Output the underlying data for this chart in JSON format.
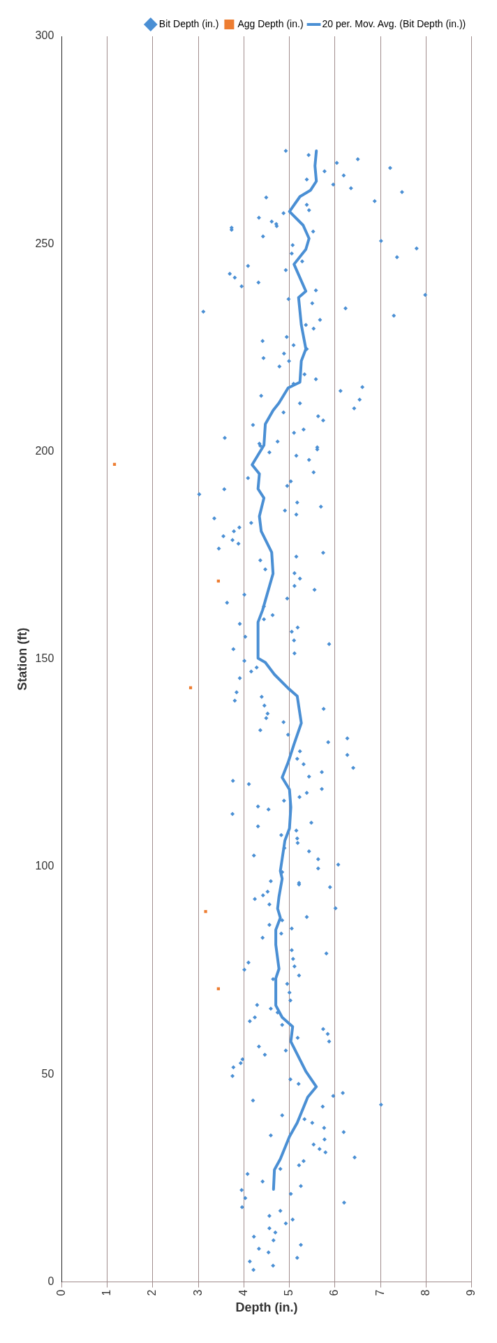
{
  "chart_data": {
    "type": "scatter",
    "xlabel": "Depth (in.)",
    "ylabel": "Station (ft)",
    "xlim": [
      0,
      9
    ],
    "xticks": [
      0,
      1,
      2,
      3,
      4,
      5,
      6,
      7,
      8,
      9
    ],
    "ylim": [
      0,
      300
    ],
    "yticks": [
      0,
      50,
      100,
      150,
      200,
      250,
      300
    ],
    "grid": "x",
    "legend": "top right",
    "series": [
      {
        "name": "Bit Depth (in.)",
        "type": "scatter",
        "marker": "diamond",
        "color": "#4a8fd4",
        "values": [
          272.4,
          271.4,
          269.5,
          270.4,
          268.3,
          267.5,
          265.5,
          266.5,
          264.3,
          263.4,
          262.5,
          260.3,
          261.2,
          259.4,
          258.1,
          257.4,
          256.3,
          255.4,
          254.3,
          253.4,
          253.9,
          254.8,
          253.0,
          251.8,
          250.7,
          248.9,
          249.7,
          247.7,
          246.8,
          245.8,
          244.7,
          243.7,
          242.8,
          241.9,
          239.8,
          240.7,
          238.8,
          237.7,
          236.7,
          235.7,
          234.5,
          233.7,
          232.7,
          231.7,
          230.5,
          229.6,
          227.6,
          226.6,
          225.6,
          224.7,
          223.6,
          222.5,
          221.8,
          220.5,
          218.6,
          217.4,
          216.3,
          215.5,
          214.6,
          212.5,
          213.4,
          211.6,
          210.4,
          209.4,
          208.5,
          207.5,
          206.4,
          205.3,
          204.5,
          203.3,
          202.4,
          201.4,
          200.5,
          201.9,
          199.8,
          201.0,
          199.0,
          198.0,
          195.0,
          193.6,
          192.8,
          191.7,
          190.9,
          189.7,
          187.7,
          186.7,
          185.8,
          184.8,
          183.9,
          182.8,
          181.7,
          180.8,
          179.6,
          178.7,
          177.8,
          176.6,
          175.6,
          174.7,
          173.8,
          171.6,
          170.7,
          169.4,
          167.6,
          166.7,
          164.6,
          165.5,
          163.6,
          162.7,
          160.6,
          159.6,
          158.5,
          157.6,
          156.6,
          155.4,
          154.5,
          153.6,
          152.4,
          151.4,
          149.6,
          147.0,
          148.0,
          145.4,
          142.0,
          140.0,
          140.9,
          138.8,
          136.9,
          135.8,
          138.0,
          134.8,
          132.9,
          131.8,
          130.9,
          130.0,
          126.9,
          127.8,
          126.0,
          124.7,
          123.8,
          122.8,
          121.7,
          120.7,
          119.9,
          117.8,
          118.7,
          116.8,
          115.9,
          114.5,
          113.8,
          112.7,
          110.6,
          109.7,
          107.6,
          108.7,
          106.8,
          105.7,
          103.7,
          102.7,
          104.5,
          101.8,
          100.5,
          99.6,
          98.7,
          96.5,
          95.7,
          95.1,
          96.1,
          94.0,
          93.1,
          92.2,
          90.9,
          90.0,
          87.9,
          87.1,
          86.0,
          85.1,
          83.9,
          82.9,
          79.9,
          79.1,
          77.8,
          76.0,
          76.9,
          75.2,
          73.8,
          72.9,
          71.8,
          69.7,
          67.8,
          66.7,
          65.8,
          64.9,
          63.7,
          62.8,
          61.9,
          60.9,
          59.7,
          57.9,
          58.8,
          56.7,
          55.7,
          54.7,
          53.6,
          52.7,
          51.7,
          49.6,
          48.8,
          47.7,
          44.8,
          45.5,
          43.7,
          42.7,
          42.2,
          40.1,
          39.2,
          38.3,
          37.1,
          35.3,
          36.1,
          34.3,
          33.1,
          32.0,
          31.2,
          30.0,
          28.1,
          29.1,
          27.2,
          26.0,
          24.2,
          23.1,
          22.1,
          20.2,
          21.2,
          19.1,
          18.0,
          17.1,
          15.9,
          15.0,
          14.1,
          12.9,
          11.9,
          10.9,
          10.0,
          8.9,
          8.0,
          7.1,
          5.8,
          4.9,
          2.9,
          3.9
        ],
        "x": [
          4.92,
          5.42,
          6.04,
          6.5,
          7.21,
          5.77,
          5.38,
          6.19,
          5.96,
          6.35,
          7.47,
          6.87,
          4.49,
          5.38,
          5.43,
          4.87,
          4.33,
          4.61,
          4.72,
          3.73,
          3.73,
          4.71,
          5.52,
          4.42,
          7.01,
          7.79,
          5.07,
          5.05,
          7.36,
          5.28,
          4.09,
          4.92,
          3.69,
          3.8,
          3.95,
          4.32,
          5.58,
          7.98,
          4.98,
          5.5,
          6.23,
          3.11,
          7.29,
          5.67,
          5.36,
          5.53,
          4.94,
          4.41,
          5.09,
          5.38,
          4.88,
          4.43,
          4.99,
          4.78,
          5.33,
          5.58,
          5.09,
          6.6,
          6.12,
          6.54,
          4.38,
          5.23,
          6.42,
          4.87,
          5.63,
          5.74,
          4.2,
          5.31,
          5.1,
          3.58,
          4.74,
          4.36,
          5.61,
          4.34,
          4.56,
          5.61,
          5.15,
          5.43,
          5.53,
          4.09,
          5.03,
          4.95,
          3.57,
          3.02,
          5.17,
          5.69,
          4.9,
          5.15,
          3.35,
          4.16,
          3.9,
          3.78,
          3.55,
          3.75,
          3.88,
          3.45,
          5.74,
          5.15,
          4.36,
          4.47,
          5.11,
          5.23,
          5.11,
          5.55,
          4.95,
          4.01,
          3.63,
          4.44,
          4.63,
          4.44,
          3.91,
          5.18,
          5.05,
          4.03,
          5.1,
          5.87,
          3.77,
          5.11,
          4.01,
          4.16,
          4.28,
          3.91,
          3.84,
          3.8,
          4.39,
          4.45,
          4.52,
          4.49,
          5.75,
          4.87,
          4.36,
          4.97,
          6.27,
          5.85,
          6.27,
          5.23,
          5.17,
          5.31,
          6.4,
          5.71,
          5.43,
          3.76,
          4.11,
          5.38,
          5.71,
          5.22,
          4.88,
          4.31,
          4.54,
          3.75,
          5.48,
          4.31,
          4.82,
          5.15,
          5.17,
          5.18,
          5.43,
          4.22,
          4.89,
          5.63,
          6.07,
          5.63,
          4.84,
          4.59,
          5.21,
          5.89,
          5.21,
          4.52,
          4.42,
          4.24,
          4.56,
          6.01,
          5.38,
          4.84,
          4.56,
          5.05,
          4.82,
          4.41,
          5.05,
          5.81,
          5.08,
          5.11,
          4.1,
          4.01,
          5.21,
          4.64,
          4.95,
          5.0,
          5.02,
          4.29,
          4.59,
          4.74,
          4.24,
          4.13,
          4.84,
          5.74,
          5.84,
          5.87,
          5.18,
          4.33,
          4.92,
          4.46,
          3.97,
          3.93,
          3.77,
          3.75,
          5.02,
          5.2,
          5.96,
          6.17,
          4.2,
          7.01,
          5.73,
          4.84,
          5.33,
          5.5,
          5.76,
          4.59,
          6.19,
          5.77,
          5.53,
          5.66,
          5.79,
          6.43,
          5.21,
          5.31,
          4.8,
          4.08,
          4.41,
          5.25,
          3.95,
          4.03,
          5.03,
          6.2,
          3.96,
          4.8,
          4.56,
          5.07,
          4.92,
          4.56,
          4.69,
          4.22,
          4.65,
          5.25,
          4.33,
          4.54,
          5.17,
          4.13,
          4.21,
          4.64
        ]
      },
      {
        "name": "Agg Depth (in.)",
        "type": "scatter",
        "marker": "square",
        "color": "#ed7d31",
        "x": [
          1.16,
          2.83,
          3.44,
          3.44,
          3.16
        ],
        "values": [
          196.9,
          143.1,
          168.8,
          70.6,
          89.2
        ]
      },
      {
        "name": "20 per. Mov. Avg. (Bit Depth (in.))",
        "type": "line",
        "marker": "none",
        "line_style": "solid",
        "color": "#4a8fd4",
        "values": [
          22.3,
          27,
          29.6,
          35,
          38.3,
          44.5,
          47,
          50.7,
          57.9,
          61.5,
          63.7,
          66.6,
          73.1,
          75.4,
          81.2,
          84.8,
          87.7,
          89.9,
          92.8,
          97.1,
          99,
          106.3,
          109.2,
          114.3,
          118.6,
          121.5,
          125.1,
          129.5,
          134.6,
          141.1,
          143,
          146.3,
          149.2,
          150.2,
          158.9,
          161.8,
          170.6,
          175.7,
          180.8,
          184.4,
          188.8,
          191,
          194.6,
          196.8,
          201.5,
          206.6,
          209.9,
          211.7,
          215.3,
          216.7,
          221.8,
          224.7,
          230.5,
          237.1,
          238.6,
          245.1,
          248.7,
          251.3,
          254.5,
          257.8,
          261.4,
          262.9,
          265.1,
          268.8,
          272.4
        ],
        "x": [
          4.65,
          4.67,
          4.8,
          5.0,
          5.17,
          5.4,
          5.59,
          5.36,
          5.03,
          5.07,
          4.84,
          4.7,
          4.7,
          4.77,
          4.7,
          4.7,
          4.8,
          4.74,
          4.77,
          4.84,
          4.8,
          4.9,
          5.0,
          5.03,
          5.0,
          4.84,
          4.97,
          5.1,
          5.26,
          5.17,
          4.97,
          4.67,
          4.47,
          4.31,
          4.31,
          4.41,
          4.64,
          4.61,
          4.38,
          4.34,
          4.44,
          4.31,
          4.34,
          4.18,
          4.44,
          4.47,
          4.64,
          4.77,
          4.97,
          5.23,
          5.26,
          5.36,
          5.26,
          5.2,
          5.36,
          5.1,
          5.36,
          5.43,
          5.3,
          5.0,
          5.23,
          5.46,
          5.59,
          5.56,
          5.59
        ]
      }
    ]
  }
}
